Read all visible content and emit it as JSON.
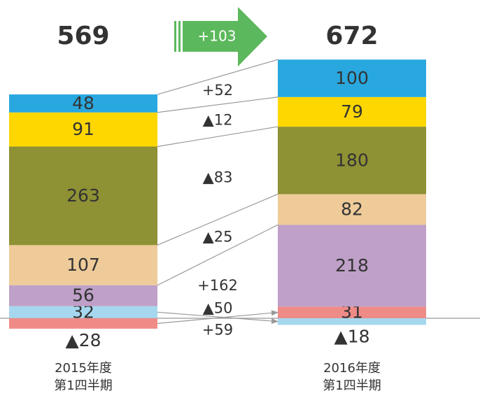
{
  "chart_data": {
    "type": "bar",
    "categories": [
      [
        "2015年度",
        "第1四半期"
      ],
      [
        "2016年度",
        "第1四半期"
      ]
    ],
    "totals": [
      569,
      672
    ],
    "total_change": 103,
    "total_change_label": "+103",
    "ylim": [
      -213,
      849
    ],
    "series": [
      {
        "color": "#a5d8ee",
        "values": [
          32,
          -18
        ],
        "value_labels": [
          "32",
          "▲18"
        ],
        "change": -50,
        "change_label": "▲50"
      },
      {
        "color": "#ef8b87",
        "values": [
          -28,
          31
        ],
        "value_labels": [
          "▲28",
          "31"
        ],
        "change": 59,
        "change_label": "+59"
      },
      {
        "color": "#bfa0c8",
        "values": [
          56,
          218
        ],
        "change": 162,
        "change_label": "+162"
      },
      {
        "color": "#eecb99",
        "values": [
          107,
          82
        ],
        "change": -25,
        "change_label": "▲25"
      },
      {
        "color": "#8e9134",
        "values": [
          263,
          180
        ],
        "change": -83,
        "change_label": "▲83"
      },
      {
        "color": "#ffd700",
        "values": [
          91,
          79
        ],
        "change": -12,
        "change_label": "▲12"
      },
      {
        "color": "#29a8e0",
        "values": [
          48,
          100
        ],
        "change": 52,
        "change_label": "+52"
      }
    ]
  }
}
